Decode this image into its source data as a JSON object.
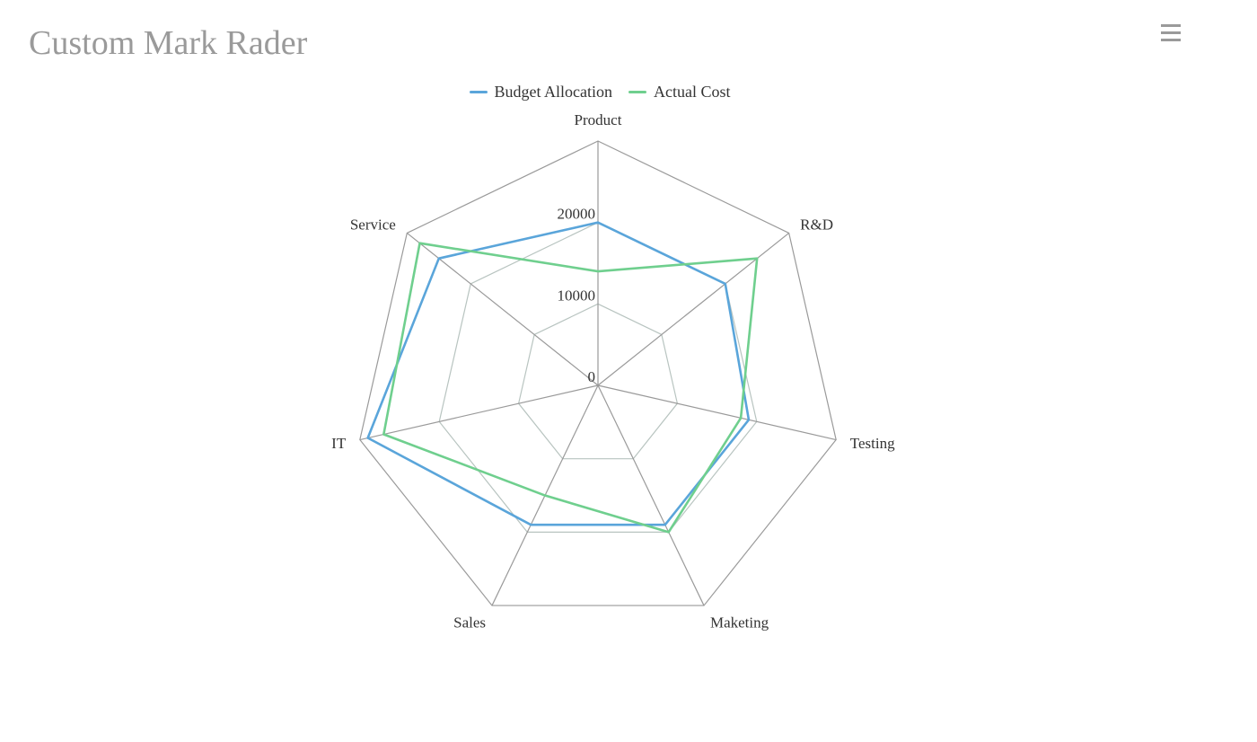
{
  "title": "Custom Mark Rader",
  "menu_icon": "hamburger-menu-icon",
  "chart_data": {
    "type": "radar",
    "categories": [
      "Product",
      "R&D",
      "Testing",
      "Maketing",
      "Sales",
      "IT",
      "Service"
    ],
    "max": 30000,
    "ticks": [
      "0",
      "10000",
      "20000"
    ],
    "tick_values": [
      0,
      10000,
      20000
    ],
    "split_levels": 3,
    "legend_position": "top-center",
    "series": [
      {
        "name": "Budget Allocation",
        "color": "#5aa5da",
        "values": [
          20000,
          20000,
          19000,
          19000,
          19000,
          29000,
          25000
        ]
      },
      {
        "name": "Actual Cost",
        "color": "#6fcf8e",
        "values": [
          14000,
          25000,
          18000,
          20000,
          15000,
          27000,
          28000
        ]
      }
    ],
    "grid_color": "#aaaaaa"
  }
}
